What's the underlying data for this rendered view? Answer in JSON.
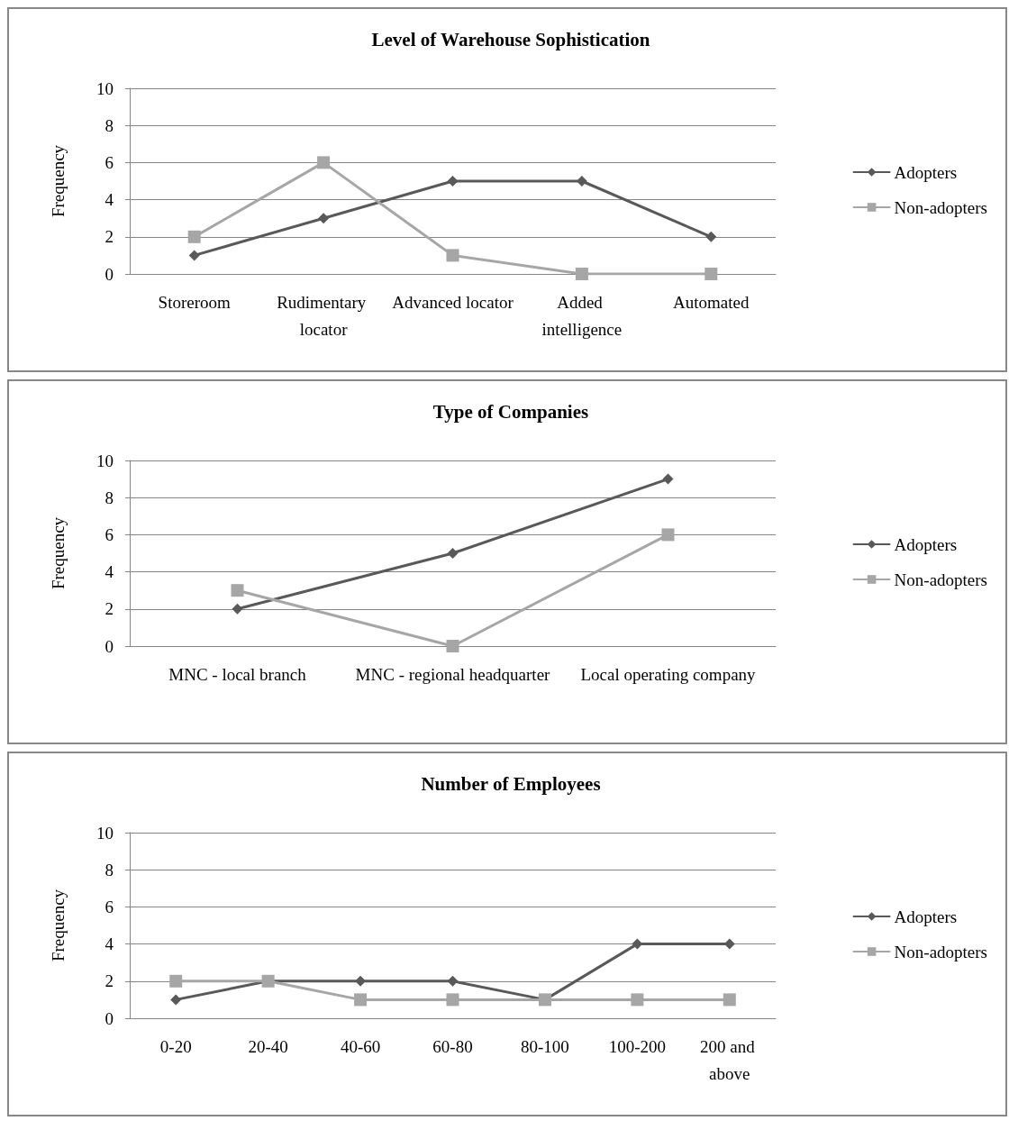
{
  "chart_data": [
    {
      "type": "line",
      "title": "Level of Warehouse Sophistication",
      "ylabel": "Frequency",
      "categories": [
        "Storeroom",
        "Rudimentary locator",
        "Advanced locator",
        "Added intelligence",
        "Automated"
      ],
      "series": [
        {
          "name": "Adopters",
          "color": "#595959",
          "marker": "diamond",
          "values": [
            1,
            3,
            5,
            5,
            2
          ]
        },
        {
          "name": "Non-adopters",
          "color": "#a6a6a6",
          "marker": "square",
          "values": [
            2,
            6,
            1,
            0,
            0
          ]
        }
      ],
      "ylim": [
        0,
        10
      ],
      "yticks": [
        0,
        2,
        4,
        6,
        8,
        10
      ],
      "grid": "y",
      "legend": "right"
    },
    {
      "type": "line",
      "title": "Type of Companies",
      "ylabel": "Frequency",
      "categories": [
        "MNC - local branch",
        "MNC - regional headquarter",
        "Local operating company"
      ],
      "series": [
        {
          "name": "Adopters",
          "color": "#595959",
          "marker": "diamond",
          "values": [
            2,
            5,
            9
          ]
        },
        {
          "name": "Non-adopters",
          "color": "#a6a6a6",
          "marker": "square",
          "values": [
            3,
            0,
            6
          ]
        }
      ],
      "ylim": [
        0,
        10
      ],
      "yticks": [
        0,
        2,
        4,
        6,
        8,
        10
      ],
      "grid": "y",
      "legend": "right"
    },
    {
      "type": "line",
      "title": "Number of Employees",
      "ylabel": "Frequency",
      "categories": [
        "0-20",
        "20-40",
        "40-60",
        "60-80",
        "80-100",
        "100-200",
        "200 and above"
      ],
      "series": [
        {
          "name": "Adopters",
          "color": "#595959",
          "marker": "diamond",
          "values": [
            1,
            2,
            2,
            2,
            1,
            4,
            4
          ]
        },
        {
          "name": "Non-adopters",
          "color": "#a6a6a6",
          "marker": "square",
          "values": [
            2,
            2,
            1,
            1,
            1,
            1,
            1
          ]
        }
      ],
      "ylim": [
        0,
        10
      ],
      "yticks": [
        0,
        2,
        4,
        6,
        8,
        10
      ],
      "grid": "y",
      "legend": "right"
    }
  ]
}
